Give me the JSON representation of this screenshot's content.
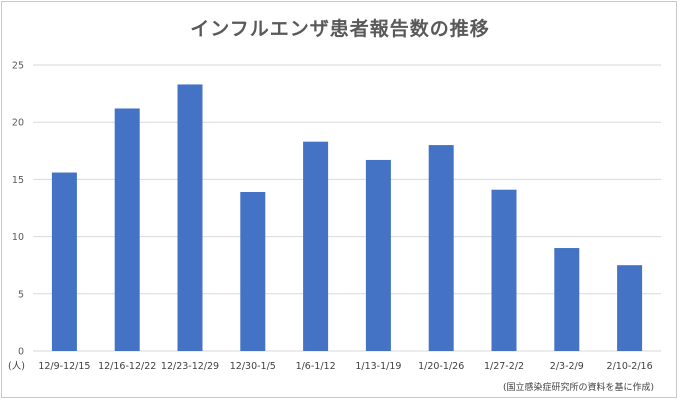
{
  "chart_data": {
    "type": "bar",
    "title": "インフルエンザ患者報告数の推移",
    "unit_label": "(人)",
    "source_note": "(国立感染症研究所の資料を基に作成)",
    "categories": [
      "12/9-12/15",
      "12/16-12/22",
      "12/23-12/29",
      "12/30-1/5",
      "1/6-1/12",
      "1/13-1/19",
      "1/20-1/26",
      "1/27-2/2",
      "2/3-2/9",
      "2/10-2/16"
    ],
    "values": [
      15.6,
      21.2,
      23.3,
      13.9,
      18.3,
      16.7,
      18.0,
      14.1,
      9.0,
      7.5
    ],
    "ylim": [
      0,
      25
    ],
    "yticks": [
      0,
      5,
      10,
      15,
      20,
      25
    ],
    "grid": true,
    "bar_color": "#4472c4",
    "grid_color": "#d9d9d9"
  }
}
